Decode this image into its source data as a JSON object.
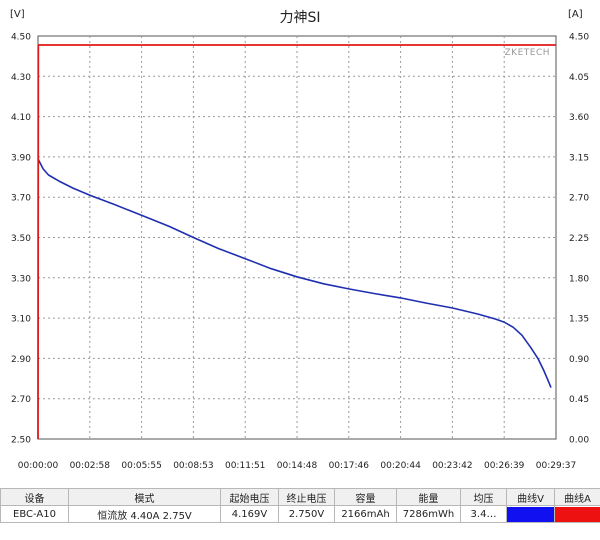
{
  "chart_data": {
    "type": "line",
    "title": "力神SI",
    "left_unit": "[V]",
    "right_unit": "[A]",
    "watermark": "ZKETECH",
    "y_left": {
      "min": 2.5,
      "max": 4.5,
      "ticks": [
        "2.50",
        "2.70",
        "2.90",
        "3.10",
        "3.30",
        "3.50",
        "3.70",
        "3.90",
        "4.10",
        "4.30",
        "4.50"
      ]
    },
    "y_right": {
      "min": 0,
      "max": 4.5,
      "ticks": [
        "0.00",
        "0.45",
        "0.90",
        "1.35",
        "1.80",
        "2.25",
        "2.70",
        "3.15",
        "3.60",
        "4.05",
        "4.50"
      ]
    },
    "x": {
      "min_s": 0,
      "max_s": 1777,
      "ticks": [
        "00:00:00",
        "00:02:58",
        "00:05:55",
        "00:08:53",
        "00:11:51",
        "00:14:48",
        "00:17:46",
        "00:20:44",
        "00:23:42",
        "00:26:39",
        "00:29:37"
      ]
    },
    "grid": true,
    "background": "#ffffff",
    "grid_color": "#9a9a9a",
    "series": [
      {
        "axis": "left",
        "color": "#1f2fb0",
        "points": [
          [
            "00:00:00",
            3.89
          ],
          [
            "00:00:18",
            3.84
          ],
          [
            "00:00:36",
            3.81
          ],
          [
            "00:01:12",
            3.78
          ],
          [
            "00:02:00",
            3.745
          ],
          [
            "00:02:58",
            3.71
          ],
          [
            "00:04:20",
            3.665
          ],
          [
            "00:05:55",
            3.61
          ],
          [
            "00:07:30",
            3.555
          ],
          [
            "00:08:53",
            3.5
          ],
          [
            "00:10:20",
            3.445
          ],
          [
            "00:11:51",
            3.395
          ],
          [
            "00:13:20",
            3.345
          ],
          [
            "00:14:48",
            3.305
          ],
          [
            "00:16:20",
            3.27
          ],
          [
            "00:17:46",
            3.245
          ],
          [
            "00:19:20",
            3.22
          ],
          [
            "00:20:44",
            3.2
          ],
          [
            "00:22:10",
            3.175
          ],
          [
            "00:23:42",
            3.15
          ],
          [
            "00:25:10",
            3.12
          ],
          [
            "00:26:10",
            3.095
          ],
          [
            "00:26:39",
            3.08
          ],
          [
            "00:27:10",
            3.055
          ],
          [
            "00:27:40",
            3.015
          ],
          [
            "00:28:10",
            2.955
          ],
          [
            "00:28:35",
            2.9
          ],
          [
            "00:28:55",
            2.84
          ],
          [
            "00:29:10",
            2.79
          ],
          [
            "00:29:20",
            2.755
          ]
        ]
      },
      {
        "axis": "right",
        "color": "#e01818",
        "points": [
          [
            "00:00:00",
            0.0
          ],
          [
            "00:00:01",
            4.4
          ],
          [
            "00:29:37",
            4.4
          ]
        ]
      }
    ]
  },
  "table": {
    "headers": [
      "设备",
      "模式",
      "起始电压",
      "终止电压",
      "容量",
      "能量",
      "均压",
      "曲线V",
      "曲线A"
    ],
    "row": [
      "EBC-A10",
      "恒流放  4.40A  2.75V",
      "4.169V",
      "2.750V",
      "2166mAh",
      "7286mWh",
      "3.4…",
      "",
      ""
    ],
    "curve_v_color": "#1010f0",
    "curve_a_color": "#ee1111"
  }
}
